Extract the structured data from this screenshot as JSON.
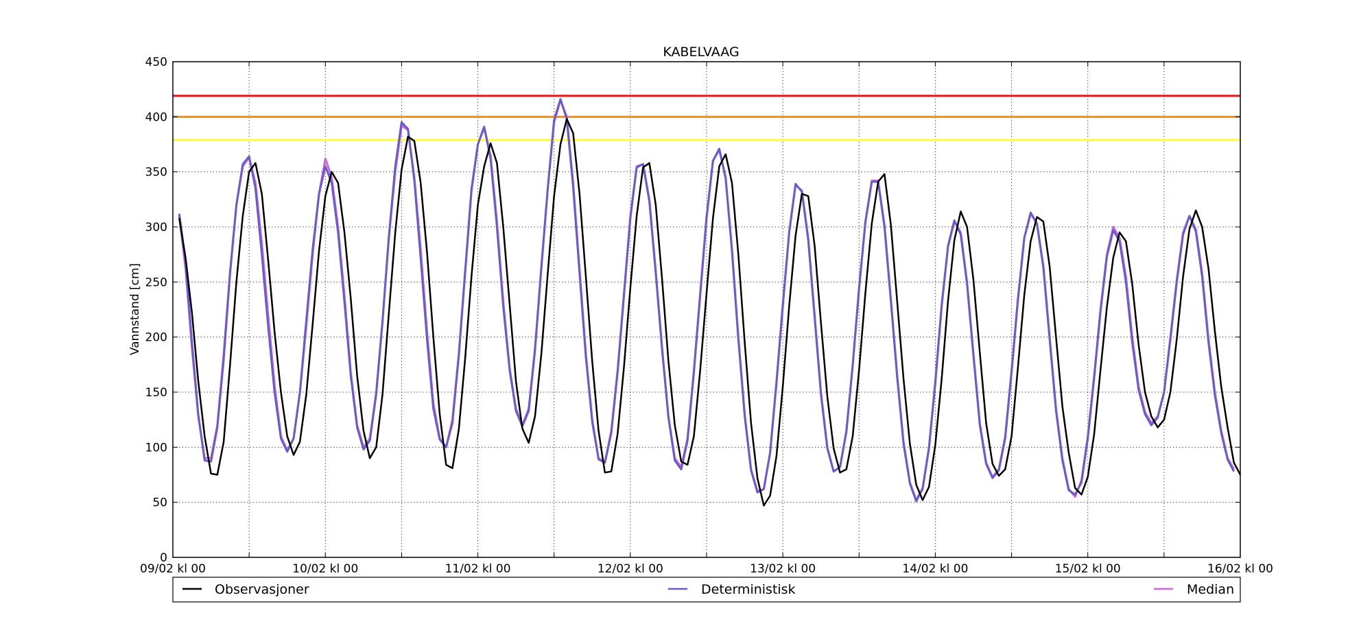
{
  "chart_data": {
    "type": "line",
    "title": "KABELVAAG",
    "ylabel": "Vannstand [cm]",
    "xlabel": "",
    "xlim": [
      0,
      168
    ],
    "ylim": [
      0,
      450
    ],
    "y_ticks": [
      0,
      50,
      100,
      150,
      200,
      250,
      300,
      350,
      400,
      450
    ],
    "x_ticks": [
      {
        "x": 0,
        "label": "09/02 kl 00"
      },
      {
        "x": 24,
        "label": "10/02 kl 00"
      },
      {
        "x": 48,
        "label": "11/02 kl 00"
      },
      {
        "x": 72,
        "label": "12/02 kl 00"
      },
      {
        "x": 96,
        "label": "13/02 kl 00"
      },
      {
        "x": 120,
        "label": "14/02 kl 00"
      },
      {
        "x": 144,
        "label": "15/02 kl 00"
      },
      {
        "x": 168,
        "label": "16/02 kl 00"
      }
    ],
    "minor_x_ticks": [
      12,
      36,
      60,
      84,
      108,
      132,
      156
    ],
    "grid": true,
    "legend_position": "bottom",
    "thresholds": [
      {
        "value": 419,
        "color": "#e41a1c"
      },
      {
        "value": 400,
        "color": "#ff8c00"
      },
      {
        "value": 379,
        "color": "#ffff33"
      }
    ],
    "legend": [
      {
        "label": "Observasjoner",
        "color": "#000000"
      },
      {
        "label": "Deterministisk",
        "color": "#6a5acd"
      },
      {
        "label": "Median",
        "color": "#cc66dd"
      }
    ],
    "series": [
      {
        "name": "Median",
        "color": "#cc66dd",
        "step": 1,
        "start": 1,
        "values": [
          310,
          262,
          190,
          128,
          90,
          90,
          120,
          185,
          260,
          320,
          355,
          363,
          340,
          285,
          220,
          157,
          110,
          97,
          108,
          150,
          210,
          275,
          330,
          362,
          345,
          300,
          238,
          168,
          120,
          100,
          108,
          150,
          215,
          290,
          350,
          392,
          388,
          345,
          280,
          205,
          140,
          108,
          100,
          125,
          185,
          260,
          335,
          375,
          390,
          365,
          305,
          232,
          172,
          135,
          120,
          135,
          190,
          265,
          335,
          395,
          415,
          400,
          340,
          262,
          185,
          125,
          90,
          86,
          115,
          170,
          240,
          310,
          355,
          357,
          325,
          260,
          190,
          128,
          90,
          82,
          108,
          170,
          240,
          310,
          360,
          370,
          345,
          280,
          200,
          130,
          80,
          60,
          62,
          95,
          160,
          230,
          295,
          338,
          333,
          290,
          220,
          150,
          100,
          78,
          82,
          115,
          175,
          245,
          305,
          342,
          342,
          302,
          235,
          165,
          105,
          68,
          52,
          63,
          100,
          160,
          230,
          282,
          305,
          295,
          250,
          185,
          122,
          86,
          73,
          80,
          110,
          170,
          235,
          290,
          312,
          303,
          265,
          200,
          135,
          90,
          62,
          55,
          70,
          110,
          165,
          225,
          275,
          300,
          290,
          255,
          200,
          155,
          132,
          122,
          128,
          150,
          200,
          252,
          295,
          310,
          298,
          258,
          198,
          150,
          115,
          90,
          80
        ]
      },
      {
        "name": "Deterministisk",
        "color": "#6a5acd",
        "step": 1,
        "start": 1,
        "values": [
          312,
          268,
          195,
          130,
          88,
          87,
          118,
          180,
          258,
          320,
          357,
          364,
          335,
          275,
          210,
          150,
          108,
          96,
          108,
          150,
          215,
          280,
          330,
          355,
          340,
          295,
          232,
          165,
          118,
          98,
          106,
          148,
          214,
          292,
          355,
          395,
          389,
          342,
          272,
          198,
          135,
          107,
          100,
          122,
          183,
          258,
          333,
          375,
          391,
          362,
          300,
          228,
          170,
          133,
          119,
          133,
          188,
          263,
          335,
          397,
          416,
          398,
          336,
          258,
          182,
          123,
          89,
          86,
          113,
          168,
          238,
          308,
          354,
          357,
          323,
          258,
          188,
          127,
          88,
          80,
          106,
          168,
          238,
          308,
          360,
          371,
          344,
          278,
          198,
          128,
          79,
          59,
          62,
          95,
          158,
          228,
          295,
          339,
          332,
          288,
          218,
          148,
          99,
          78,
          82,
          114,
          174,
          244,
          304,
          341,
          341,
          300,
          233,
          163,
          103,
          67,
          51,
          62,
          99,
          158,
          228,
          283,
          306,
          293,
          248,
          183,
          120,
          85,
          72,
          79,
          108,
          168,
          233,
          290,
          313,
          303,
          263,
          198,
          133,
          88,
          61,
          57,
          68,
          108,
          163,
          223,
          273,
          297,
          287,
          250,
          195,
          152,
          130,
          120,
          127,
          150,
          198,
          250,
          293,
          310,
          296,
          255,
          195,
          147,
          113,
          89,
          78
        ]
      },
      {
        "name": "Observasjoner",
        "color": "#000000",
        "step": 1,
        "start": 1,
        "values": [
          308,
          272,
          222,
          160,
          110,
          76,
          75,
          105,
          175,
          250,
          310,
          350,
          358,
          330,
          270,
          205,
          150,
          110,
          93,
          105,
          148,
          212,
          278,
          328,
          350,
          340,
          295,
          235,
          165,
          115,
          90,
          100,
          148,
          222,
          295,
          352,
          382,
          378,
          340,
          277,
          200,
          130,
          84,
          81,
          116,
          180,
          255,
          320,
          355,
          376,
          358,
          300,
          230,
          160,
          117,
          104,
          128,
          185,
          258,
          328,
          375,
          398,
          385,
          330,
          255,
          178,
          115,
          77,
          78,
          112,
          173,
          245,
          310,
          354,
          358,
          320,
          252,
          178,
          120,
          87,
          84,
          110,
          170,
          240,
          308,
          355,
          366,
          340,
          275,
          195,
          122,
          72,
          47,
          56,
          92,
          155,
          228,
          292,
          330,
          328,
          283,
          213,
          146,
          99,
          77,
          80,
          110,
          170,
          240,
          303,
          341,
          348,
          302,
          232,
          162,
          103,
          66,
          52,
          64,
          102,
          162,
          233,
          288,
          314,
          300,
          252,
          186,
          122,
          85,
          74,
          80,
          110,
          172,
          238,
          287,
          309,
          305,
          264,
          200,
          137,
          95,
          63,
          57,
          73,
          112,
          170,
          227,
          272,
          295,
          287,
          248,
          193,
          150,
          128,
          118,
          125,
          150,
          198,
          255,
          298,
          315,
          300,
          262,
          205,
          155,
          118,
          86,
          75
        ]
      }
    ]
  }
}
